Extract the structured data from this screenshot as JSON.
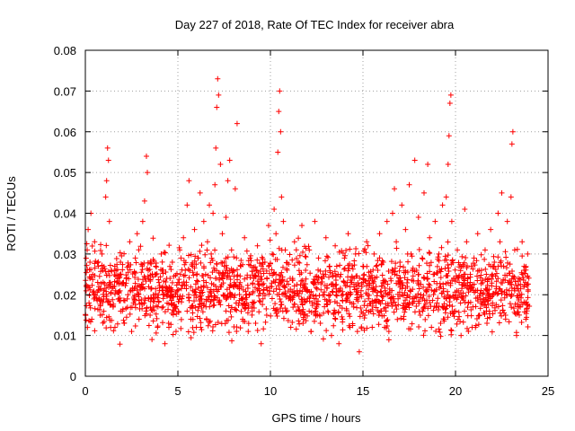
{
  "chart_data": {
    "type": "scatter",
    "title": "Day 227 of 2018, Rate Of TEC Index for receiver abra",
    "xlabel": "GPS time / hours",
    "ylabel": "ROTI / TECUs",
    "xlim": [
      0,
      25
    ],
    "ylim": [
      0,
      0.08
    ],
    "xticks": [
      0,
      5,
      10,
      15,
      20,
      25
    ],
    "yticks": [
      0,
      0.01,
      0.02,
      0.03,
      0.04,
      0.05,
      0.06,
      0.07,
      0.08
    ],
    "xtick_labels": [
      "0",
      "5",
      "10",
      "15",
      "20",
      "25"
    ],
    "ytick_labels": [
      "0",
      "0.01",
      "0.02",
      "0.03",
      "0.04",
      "0.05",
      "0.06",
      "0.07",
      "0.08"
    ],
    "grid": true,
    "marker": "plus",
    "color": "#ff0000",
    "series": [
      {
        "points": [
          [
            0.05,
            0.022
          ],
          [
            0.1,
            0.031
          ],
          [
            0.15,
            0.036
          ],
          [
            0.2,
            0.018
          ],
          [
            0.25,
            0.028
          ],
          [
            0.3,
            0.04
          ],
          [
            0.35,
            0.014
          ],
          [
            0.4,
            0.025
          ],
          [
            0.5,
            0.033
          ],
          [
            0.6,
            0.019
          ],
          [
            0.7,
            0.027
          ],
          [
            0.8,
            0.015
          ],
          [
            0.9,
            0.03
          ],
          [
            1.0,
            0.021
          ],
          [
            1.1,
            0.044
          ],
          [
            1.15,
            0.048
          ],
          [
            1.2,
            0.056
          ],
          [
            1.25,
            0.053
          ],
          [
            1.3,
            0.038
          ],
          [
            1.4,
            0.026
          ],
          [
            1.5,
            0.017
          ],
          [
            1.6,
            0.012
          ],
          [
            1.7,
            0.023
          ],
          [
            1.8,
            0.019
          ],
          [
            1.9,
            0.028
          ],
          [
            2.0,
            0.016
          ],
          [
            2.1,
            0.013
          ],
          [
            2.2,
            0.024
          ],
          [
            2.3,
            0.02
          ],
          [
            2.4,
            0.033
          ],
          [
            2.5,
            0.011
          ],
          [
            2.6,
            0.018
          ],
          [
            2.7,
            0.029
          ],
          [
            2.8,
            0.035
          ],
          [
            2.9,
            0.014
          ],
          [
            3.0,
            0.022
          ],
          [
            3.1,
            0.038
          ],
          [
            3.2,
            0.043
          ],
          [
            3.3,
            0.054
          ],
          [
            3.35,
            0.05
          ],
          [
            3.4,
            0.026
          ],
          [
            3.5,
            0.015
          ],
          [
            3.6,
            0.009
          ],
          [
            3.7,
            0.019
          ],
          [
            3.8,
            0.027
          ],
          [
            3.9,
            0.012
          ],
          [
            4.0,
            0.021
          ],
          [
            4.1,
            0.03
          ],
          [
            4.2,
            0.017
          ],
          [
            4.3,
            0.008
          ],
          [
            4.4,
            0.024
          ],
          [
            4.5,
            0.013
          ],
          [
            4.6,
            0.02
          ],
          [
            4.7,
            0.028
          ],
          [
            4.8,
            0.016
          ],
          [
            4.9,
            0.011
          ],
          [
            5.0,
            0.023
          ],
          [
            5.1,
            0.031
          ],
          [
            5.2,
            0.019
          ],
          [
            5.3,
            0.034
          ],
          [
            5.4,
            0.026
          ],
          [
            5.5,
            0.042
          ],
          [
            5.6,
            0.048
          ],
          [
            5.7,
            0.014
          ],
          [
            5.8,
            0.021
          ],
          [
            5.9,
            0.036
          ],
          [
            6.0,
            0.012
          ],
          [
            6.1,
            0.029
          ],
          [
            6.2,
            0.045
          ],
          [
            6.3,
            0.018
          ],
          [
            6.4,
            0.038
          ],
          [
            6.5,
            0.025
          ],
          [
            6.6,
            0.033
          ],
          [
            6.7,
            0.042
          ],
          [
            6.8,
            0.03
          ],
          [
            6.9,
            0.04
          ],
          [
            7.0,
            0.047
          ],
          [
            7.05,
            0.056
          ],
          [
            7.1,
            0.066
          ],
          [
            7.15,
            0.073
          ],
          [
            7.2,
            0.069
          ],
          [
            7.3,
            0.052
          ],
          [
            7.4,
            0.035
          ],
          [
            7.5,
            0.027
          ],
          [
            7.6,
            0.039
          ],
          [
            7.7,
            0.048
          ],
          [
            7.8,
            0.053
          ],
          [
            7.9,
            0.031
          ],
          [
            8.0,
            0.022
          ],
          [
            8.1,
            0.046
          ],
          [
            8.2,
            0.062
          ],
          [
            8.3,
            0.018
          ],
          [
            8.4,
            0.027
          ],
          [
            8.5,
            0.014
          ],
          [
            8.6,
            0.034
          ],
          [
            8.7,
            0.02
          ],
          [
            8.8,
            0.011
          ],
          [
            8.9,
            0.029
          ],
          [
            9.0,
            0.017
          ],
          [
            9.1,
            0.024
          ],
          [
            9.2,
            0.013
          ],
          [
            9.3,
            0.032
          ],
          [
            9.4,
            0.021
          ],
          [
            9.5,
            0.008
          ],
          [
            9.6,
            0.019
          ],
          [
            9.7,
            0.028
          ],
          [
            9.8,
            0.015
          ],
          [
            9.9,
            0.037
          ],
          [
            10.0,
            0.022
          ],
          [
            10.1,
            0.03
          ],
          [
            10.2,
            0.041
          ],
          [
            10.3,
            0.035
          ],
          [
            10.4,
            0.055
          ],
          [
            10.45,
            0.065
          ],
          [
            10.5,
            0.07
          ],
          [
            10.55,
            0.06
          ],
          [
            10.6,
            0.044
          ],
          [
            10.7,
            0.038
          ],
          [
            10.8,
            0.031
          ],
          [
            10.9,
            0.026
          ],
          [
            11.0,
            0.019
          ],
          [
            11.1,
            0.012
          ],
          [
            11.2,
            0.024
          ],
          [
            11.3,
            0.033
          ],
          [
            11.4,
            0.016
          ],
          [
            11.5,
            0.028
          ],
          [
            11.6,
            0.021
          ],
          [
            11.7,
            0.037
          ],
          [
            11.8,
            0.014
          ],
          [
            11.9,
            0.026
          ],
          [
            12.0,
            0.019
          ],
          [
            12.1,
            0.031
          ],
          [
            12.2,
            0.011
          ],
          [
            12.3,
            0.023
          ],
          [
            12.4,
            0.038
          ],
          [
            12.5,
            0.017
          ],
          [
            12.6,
            0.029
          ],
          [
            12.7,
            0.013
          ],
          [
            12.8,
            0.024
          ],
          [
            12.9,
            0.02
          ],
          [
            13.0,
            0.034
          ],
          [
            13.1,
            0.016
          ],
          [
            13.2,
            0.027
          ],
          [
            13.3,
            0.01
          ],
          [
            13.4,
            0.022
          ],
          [
            13.5,
            0.032
          ],
          [
            13.6,
            0.018
          ],
          [
            13.7,
            0.008
          ],
          [
            13.8,
            0.025
          ],
          [
            13.9,
            0.014
          ],
          [
            14.0,
            0.029
          ],
          [
            14.1,
            0.02
          ],
          [
            14.2,
            0.035
          ],
          [
            14.3,
            0.012
          ],
          [
            14.4,
            0.023
          ],
          [
            14.5,
            0.017
          ],
          [
            14.6,
            0.03
          ],
          [
            14.7,
            0.011
          ],
          [
            14.8,
            0.006
          ],
          [
            14.9,
            0.021
          ],
          [
            15.0,
            0.027
          ],
          [
            15.1,
            0.015
          ],
          [
            15.2,
            0.033
          ],
          [
            15.3,
            0.019
          ],
          [
            15.4,
            0.024
          ],
          [
            15.5,
            0.012
          ],
          [
            15.6,
            0.03
          ],
          [
            15.7,
            0.018
          ],
          [
            15.8,
            0.026
          ],
          [
            15.9,
            0.035
          ],
          [
            16.0,
            0.016
          ],
          [
            16.1,
            0.028
          ],
          [
            16.2,
            0.021
          ],
          [
            16.3,
            0.038
          ],
          [
            16.4,
            0.011
          ],
          [
            16.5,
            0.024
          ],
          [
            16.6,
            0.04
          ],
          [
            16.7,
            0.046
          ],
          [
            16.8,
            0.033
          ],
          [
            16.9,
            0.019
          ],
          [
            17.0,
            0.028
          ],
          [
            17.1,
            0.042
          ],
          [
            17.2,
            0.014
          ],
          [
            17.3,
            0.036
          ],
          [
            17.4,
            0.022
          ],
          [
            17.5,
            0.047
          ],
          [
            17.6,
            0.03
          ],
          [
            17.7,
            0.018
          ],
          [
            17.8,
            0.053
          ],
          [
            17.9,
            0.026
          ],
          [
            18.0,
            0.039
          ],
          [
            18.1,
            0.015
          ],
          [
            18.2,
            0.029
          ],
          [
            18.3,
            0.045
          ],
          [
            18.4,
            0.021
          ],
          [
            18.5,
            0.052
          ],
          [
            18.6,
            0.034
          ],
          [
            18.7,
            0.012
          ],
          [
            18.8,
            0.025
          ],
          [
            18.9,
            0.038
          ],
          [
            19.0,
            0.018
          ],
          [
            19.1,
            0.03
          ],
          [
            19.2,
            0.022
          ],
          [
            19.3,
            0.042
          ],
          [
            19.4,
            0.014
          ],
          [
            19.5,
            0.044
          ],
          [
            19.6,
            0.052
          ],
          [
            19.65,
            0.059
          ],
          [
            19.7,
            0.067
          ],
          [
            19.75,
            0.069
          ],
          [
            19.8,
            0.038
          ],
          [
            19.9,
            0.024
          ],
          [
            20.0,
            0.016
          ],
          [
            20.1,
            0.031
          ],
          [
            20.2,
            0.02
          ],
          [
            20.3,
            0.01
          ],
          [
            20.4,
            0.027
          ],
          [
            20.5,
            0.041
          ],
          [
            20.6,
            0.033
          ],
          [
            20.7,
            0.018
          ],
          [
            20.8,
            0.025
          ],
          [
            20.9,
            0.012
          ],
          [
            21.0,
            0.029
          ],
          [
            21.1,
            0.021
          ],
          [
            21.2,
            0.035
          ],
          [
            21.3,
            0.015
          ],
          [
            21.4,
            0.026
          ],
          [
            21.5,
            0.019
          ],
          [
            21.6,
            0.031
          ],
          [
            21.7,
            0.013
          ],
          [
            21.8,
            0.024
          ],
          [
            21.9,
            0.036
          ],
          [
            22.0,
            0.018
          ],
          [
            22.1,
            0.028
          ],
          [
            22.2,
            0.022
          ],
          [
            22.3,
            0.04
          ],
          [
            22.4,
            0.033
          ],
          [
            22.5,
            0.045
          ],
          [
            22.6,
            0.027
          ],
          [
            22.7,
            0.015
          ],
          [
            22.8,
            0.038
          ],
          [
            22.9,
            0.021
          ],
          [
            23.0,
            0.044
          ],
          [
            23.05,
            0.057
          ],
          [
            23.1,
            0.06
          ],
          [
            23.2,
            0.031
          ],
          [
            23.3,
            0.01
          ],
          [
            23.4,
            0.024
          ],
          [
            23.5,
            0.017
          ],
          [
            23.6,
            0.033
          ],
          [
            23.7,
            0.026
          ],
          [
            23.8,
            0.014
          ],
          [
            23.9,
            0.03
          ]
        ]
      }
    ],
    "density_band": {
      "x_start": 0,
      "x_end": 24,
      "y_center": 0.021,
      "y_spread": 0.007,
      "count": 1800
    }
  }
}
